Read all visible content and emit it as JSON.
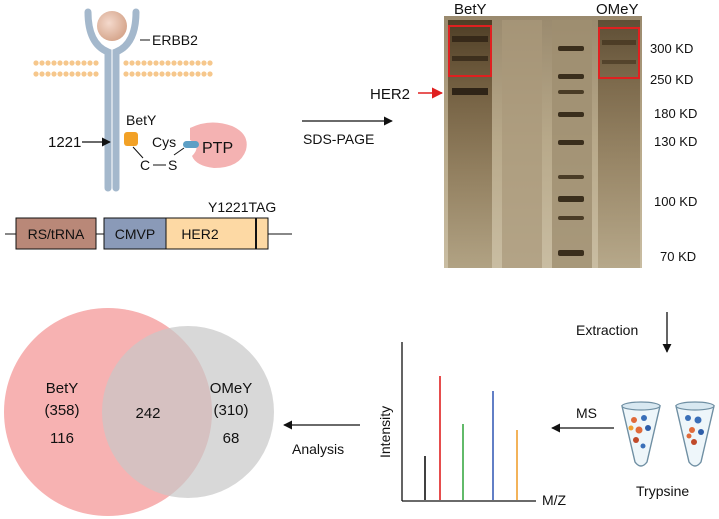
{
  "membrane": {
    "receptor_label": "ERBB2",
    "site_label": "1221",
    "betY_label": "BetY",
    "cys_label": "Cys",
    "c_label": "C",
    "s_label": "S",
    "ptp_label": "PTP",
    "colors": {
      "receptor": "#a4b8cc",
      "lipid": "#f6c78c",
      "ptp": "#f4b2b2",
      "ligand": "#e3b9a6",
      "betY_tag": "#f2a126",
      "linker": "#5d9fc5"
    }
  },
  "construct": {
    "segments": [
      "RS/tRNA",
      "CMVP",
      "HER2"
    ],
    "mutation_label": "Y1221TAG",
    "colors": {
      "rs": "#b98878",
      "cmv": "#8a9ab8",
      "her2": "#fdd9a4"
    }
  },
  "steps": {
    "sds_page": "SDS-PAGE",
    "extraction": "Extraction",
    "ms": "MS",
    "analysis": "Analysis",
    "trypsine": "Trypsine"
  },
  "gel": {
    "lane_labels": [
      "BetY",
      "OMeY"
    ],
    "band_label": "HER2",
    "markers": [
      "300 KD",
      "250 KD",
      "180 KD",
      "130 KD",
      "100 KD",
      "70 KD"
    ],
    "highlight_color": "#e02020"
  },
  "ms_plot": {
    "x_label": "M/Z",
    "y_label": "Intensity",
    "peak_colors": [
      "#111111",
      "#e02020",
      "#3aa845",
      "#3b5fb8",
      "#f0a030"
    ]
  },
  "venn": {
    "left": {
      "name": "BetY",
      "total": "(358)",
      "unique": "116",
      "color": "#f6a5a5"
    },
    "right": {
      "name": "OMeY",
      "total": "(310)",
      "unique": "68",
      "color": "#c8c8c8"
    },
    "overlap": "242"
  }
}
